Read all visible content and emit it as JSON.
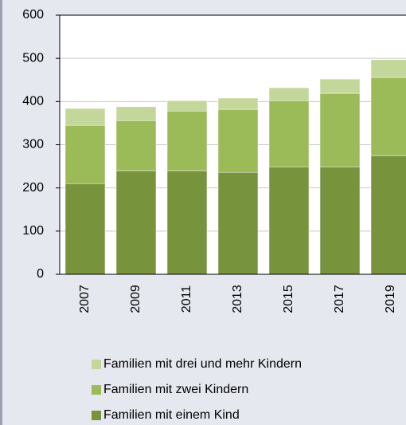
{
  "chart_data": {
    "type": "stacked-bar",
    "categories": [
      "2007",
      "2009",
      "2011",
      "2013",
      "2015",
      "2017",
      "2019"
    ],
    "series": [
      {
        "name": "Familien mit einem Kind",
        "color": "#77933c",
        "values": [
          210,
          240,
          240,
          236,
          249,
          249,
          275
        ]
      },
      {
        "name": "Familien mit zwei Kindern",
        "color": "#9bbb59",
        "values": [
          135,
          116,
          138,
          146,
          153,
          170,
          181
        ]
      },
      {
        "name": "Familien mit drei und mehr Kindern",
        "color": "#c4d79b",
        "values": [
          39,
          32,
          24,
          26,
          30,
          33,
          41
        ]
      }
    ],
    "ylim": [
      0,
      600
    ],
    "yticks": [
      0,
      100,
      200,
      300,
      400,
      500,
      600
    ],
    "grid": true
  }
}
